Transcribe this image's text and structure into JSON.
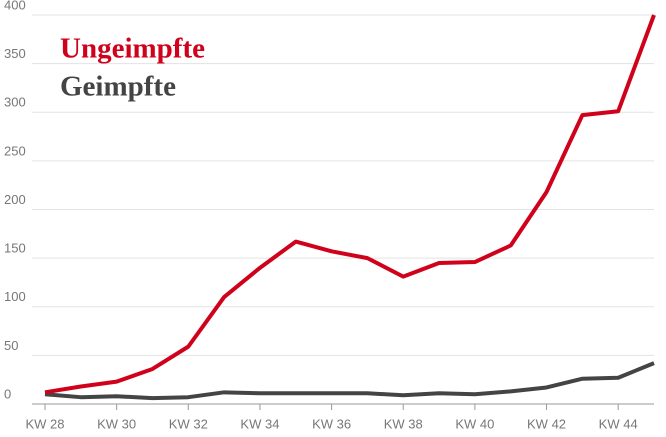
{
  "chart_data": {
    "type": "line",
    "categories": [
      "KW 28",
      null,
      "KW 30",
      null,
      "KW 32",
      null,
      "KW 34",
      null,
      "KW 36",
      null,
      "KW 38",
      null,
      "KW 40",
      null,
      "KW 42",
      null,
      "KW 44",
      null
    ],
    "series": [
      {
        "name": "Ungeimpfte",
        "color": "#d0021b",
        "values": [
          12,
          18,
          23,
          36,
          59,
          110,
          140,
          167,
          157,
          150,
          131,
          145,
          146,
          163,
          218,
          297,
          301,
          400
        ]
      },
      {
        "name": "Geimpfte",
        "color": "#444444",
        "values": [
          10,
          7,
          8,
          6,
          7,
          12,
          11,
          11,
          11,
          11,
          9,
          11,
          10,
          13,
          17,
          26,
          27,
          42
        ]
      }
    ],
    "ylim": [
      0,
      400
    ],
    "yticks": [
      0,
      50,
      100,
      150,
      200,
      250,
      300,
      350,
      400
    ],
    "grid": true,
    "legend": "upper left"
  }
}
